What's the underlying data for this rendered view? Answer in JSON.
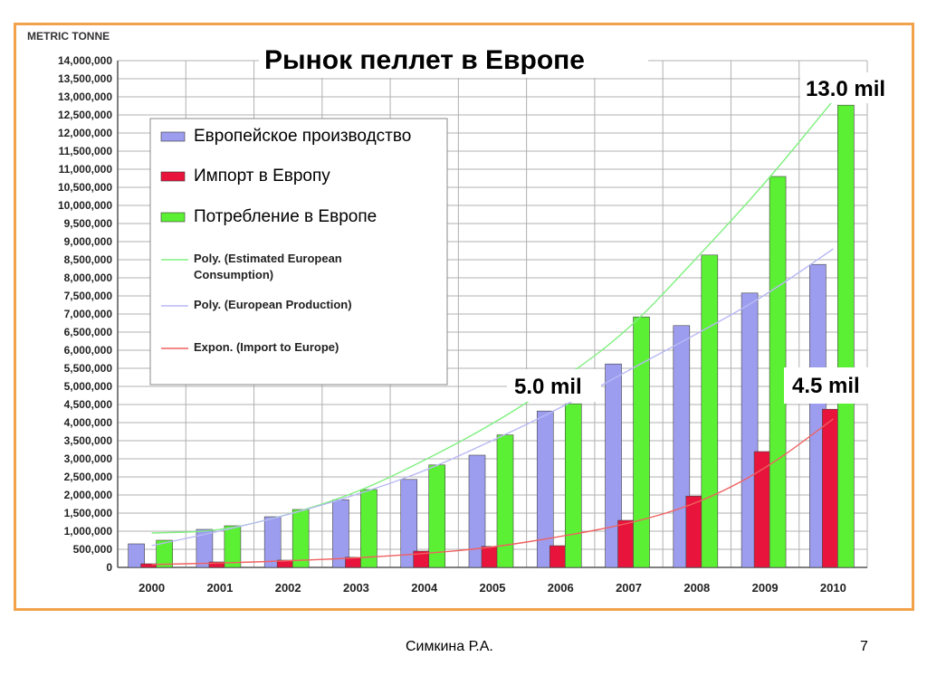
{
  "slide": {
    "author": "Симкина Р.А.",
    "page_number": "7"
  },
  "colors": {
    "frame": "#f2a24a",
    "production": "#9d9df0",
    "import": "#e8143c",
    "consumption": "#5cf034",
    "grid": "#b0b0b0"
  },
  "chart_data": {
    "type": "bar",
    "title": "Рынок пеллет в Европе",
    "unit_label": "METRIC TONNE",
    "categories": [
      "2000",
      "2001",
      "2002",
      "2003",
      "2004",
      "2005",
      "2006",
      "2007",
      "2008",
      "2009",
      "2010"
    ],
    "ylim": [
      0,
      14000000
    ],
    "ytick_step": 500000,
    "ytick_labels": [
      "0",
      "500,000",
      "1,000,000",
      "1,500,000",
      "2,000,000",
      "2,500,000",
      "3,000,000",
      "3,500,000",
      "4,000,000",
      "4,500,000",
      "5,000,000",
      "5,500,000",
      "6,000,000",
      "6,500,000",
      "7,000,000",
      "7,500,000",
      "8,000,000",
      "8,500,000",
      "9,000,000",
      "9,500,000",
      "10,000,000",
      "10,500,000",
      "11,000,000",
      "11,500,000",
      "12,000,000",
      "12,500,000",
      "13,000,000",
      "13,500,000",
      "14,000,000"
    ],
    "grid": true,
    "legend_position": "top-left",
    "series": [
      {
        "name": "Европейское производство",
        "kind": "bar",
        "color": "#9d9df0",
        "values": [
          650000,
          1050000,
          1400000,
          1870000,
          2430000,
          3100000,
          4320000,
          5620000,
          6680000,
          7580000,
          8370000
        ]
      },
      {
        "name": "Импорт в Европу",
        "kind": "bar",
        "color": "#e8143c",
        "values": [
          100000,
          150000,
          200000,
          280000,
          450000,
          580000,
          600000,
          1300000,
          1970000,
          3200000,
          4370000
        ]
      },
      {
        "name": "Потребление в Европе",
        "kind": "bar",
        "color": "#5cf034",
        "values": [
          750000,
          1150000,
          1600000,
          2150000,
          2830000,
          3660000,
          4520000,
          6920000,
          8630000,
          10800000,
          12770000
        ]
      },
      {
        "name": "Poly. (Estimated European Consumption)",
        "kind": "trendline",
        "color": "#80f080",
        "values": [
          950000,
          1000000,
          1450000,
          2050000,
          2950000,
          3950000,
          5150000,
          6550000,
          8550000,
          10600000,
          12900000
        ]
      },
      {
        "name": "Poly. (European Production)",
        "kind": "trendline",
        "color": "#b8b8f5",
        "values": [
          600000,
          1000000,
          1450000,
          2000000,
          2650000,
          3500000,
          4400000,
          5450000,
          6450000,
          7500000,
          8800000
        ]
      },
      {
        "name": "Expon. (Import to Europe)",
        "kind": "trendline",
        "color": "#f06060",
        "values": [
          80000,
          120000,
          180000,
          260000,
          380000,
          550000,
          850000,
          1200000,
          1750000,
          2700000,
          4100000
        ]
      }
    ],
    "annotations": [
      {
        "text": "13.0 mil",
        "year": "2010"
      },
      {
        "text": "5.0 mil",
        "year": "2006"
      },
      {
        "text": "4.5 mil",
        "year": "2010"
      }
    ]
  }
}
